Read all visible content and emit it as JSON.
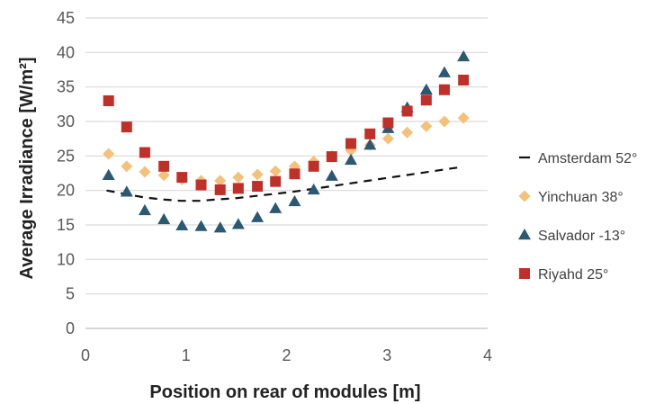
{
  "chart_data": {
    "type": "scatter",
    "title": "",
    "xlabel": "Position on rear of modules [m]",
    "ylabel": "Average Irradiance [W/m²]",
    "xlim": [
      0,
      4
    ],
    "ylim": [
      0,
      45
    ],
    "xticks": [
      0,
      1,
      2,
      3,
      4
    ],
    "yticks": [
      0,
      5,
      10,
      15,
      20,
      25,
      30,
      35,
      40,
      45
    ],
    "grid": "horizontal",
    "legend_position": "right",
    "series": [
      {
        "name": "Amsterdam 52°",
        "marker": "dash-line",
        "color": "#111111",
        "x": [
          0.21,
          0.39,
          0.58,
          0.76,
          0.95,
          1.13,
          1.32,
          1.51,
          1.69,
          1.88,
          2.06,
          2.25,
          2.44,
          2.62,
          2.81,
          2.99,
          3.18,
          3.37,
          3.55,
          3.74
        ],
        "y": [
          20.0,
          19.5,
          19.0,
          18.7,
          18.5,
          18.5,
          18.7,
          18.9,
          19.2,
          19.5,
          19.8,
          20.2,
          20.6,
          21.0,
          21.4,
          21.8,
          22.2,
          22.6,
          23.0,
          23.4
        ]
      },
      {
        "name": "Yinchuan 38°",
        "marker": "diamond",
        "color": "#F5C07A",
        "x": [
          0.23,
          0.41,
          0.59,
          0.78,
          0.96,
          1.15,
          1.34,
          1.52,
          1.71,
          1.89,
          2.08,
          2.27,
          2.45,
          2.64,
          2.83,
          3.01,
          3.2,
          3.39,
          3.57,
          3.76
        ],
        "y": [
          25.3,
          23.5,
          22.7,
          22.2,
          21.6,
          21.4,
          21.4,
          21.9,
          22.3,
          22.8,
          23.5,
          24.2,
          25.0,
          25.8,
          26.6,
          27.5,
          28.4,
          29.3,
          30.0,
          30.5
        ]
      },
      {
        "name": "Salvador -13°",
        "marker": "triangle",
        "color": "#2B5872",
        "x": [
          0.23,
          0.41,
          0.59,
          0.78,
          0.96,
          1.15,
          1.34,
          1.52,
          1.71,
          1.89,
          2.08,
          2.27,
          2.45,
          2.64,
          2.83,
          3.01,
          3.2,
          3.39,
          3.57,
          3.76
        ],
        "y": [
          22.2,
          19.8,
          17.1,
          15.8,
          14.9,
          14.8,
          14.6,
          15.1,
          16.1,
          17.4,
          18.4,
          20.1,
          22.1,
          24.4,
          26.6,
          29.0,
          32.0,
          34.6,
          37.1,
          39.4
        ]
      },
      {
        "name": "Riyahd 25°",
        "marker": "square",
        "color": "#C0302B",
        "x": [
          0.23,
          0.41,
          0.59,
          0.78,
          0.96,
          1.15,
          1.34,
          1.52,
          1.71,
          1.89,
          2.08,
          2.27,
          2.45,
          2.64,
          2.83,
          3.01,
          3.2,
          3.39,
          3.57,
          3.76
        ],
        "y": [
          33.0,
          29.2,
          25.5,
          23.5,
          21.9,
          20.8,
          20.1,
          20.3,
          20.6,
          21.3,
          22.4,
          23.5,
          24.9,
          26.8,
          28.2,
          29.8,
          31.5,
          33.1,
          34.6,
          36.0
        ]
      }
    ]
  }
}
